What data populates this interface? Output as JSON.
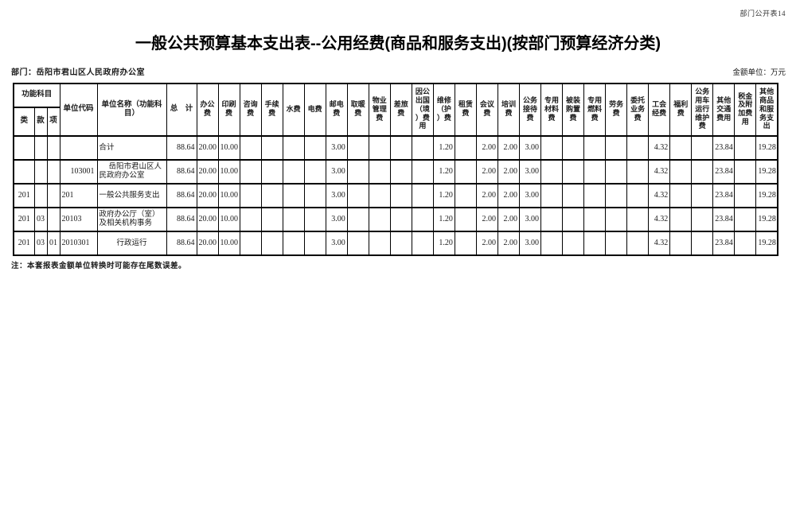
{
  "page": {
    "corner_label": "部门公开表14",
    "title": "一般公共预算基本支出表--公用经费(商品和服务支出)(按部门预算经济分类)",
    "department_label": "部门：岳阳市君山区人民政府办公室",
    "unit_label": "金额单位：万元",
    "footnote": "注：本套报表金额单位转换时可能存在尾数误差。"
  },
  "table": {
    "header": {
      "function_group": "功能科目",
      "function_cols": [
        "类",
        "款",
        "项"
      ],
      "unit_code": "单位代码",
      "unit_name": "单位名称（功能科目）",
      "total": "总　计",
      "fee_columns": [
        "办公费",
        "印刷费",
        "咨询费",
        "手续费",
        "水费",
        "电费",
        "邮电费",
        "取暖费",
        "物业管理费",
        "差旅费",
        "因公出国（境）费用",
        "维修（护）费",
        "租赁费",
        "会议费",
        "培训费",
        "公务接待费",
        "专用材料费",
        "被装购置费",
        "专用燃料费",
        "劳务费",
        "委托业务费",
        "工会经费",
        "福利费",
        "公务用车运行维护费",
        "其他交通费用",
        "税金及附加费用",
        "其他商品和服务支出"
      ]
    },
    "rows": [
      {
        "lei": "",
        "kuan": "",
        "xiang": "",
        "code": "",
        "name": "合计",
        "total": "88.64",
        "fees": [
          "20.00",
          "10.00",
          "",
          "",
          "",
          "",
          "3.00",
          "",
          "",
          "",
          "",
          "1.20",
          "",
          "2.00",
          "2.00",
          "3.00",
          "",
          "",
          "",
          "",
          "",
          "4.32",
          "",
          "",
          "23.84",
          "",
          "19.28"
        ]
      },
      {
        "lei": "",
        "kuan": "",
        "xiang": "",
        "code": "103001",
        "name": "岳阳市君山区人民政府办公室",
        "total": "88.64",
        "fees": [
          "20.00",
          "10.00",
          "",
          "",
          "",
          "",
          "3.00",
          "",
          "",
          "",
          "",
          "1.20",
          "",
          "2.00",
          "2.00",
          "3.00",
          "",
          "",
          "",
          "",
          "",
          "4.32",
          "",
          "",
          "23.84",
          "",
          "19.28"
        ]
      },
      {
        "lei": "201",
        "kuan": "",
        "xiang": "",
        "code": "201",
        "name": "一般公共服务支出",
        "total": "88.64",
        "fees": [
          "20.00",
          "10.00",
          "",
          "",
          "",
          "",
          "3.00",
          "",
          "",
          "",
          "",
          "1.20",
          "",
          "2.00",
          "2.00",
          "3.00",
          "",
          "",
          "",
          "",
          "",
          "4.32",
          "",
          "",
          "23.84",
          "",
          "19.28"
        ]
      },
      {
        "lei": "201",
        "kuan": "03",
        "xiang": "",
        "code": "20103",
        "name": "政府办公厅（室）及相关机构事务",
        "total": "88.64",
        "fees": [
          "20.00",
          "10.00",
          "",
          "",
          "",
          "",
          "3.00",
          "",
          "",
          "",
          "",
          "1.20",
          "",
          "2.00",
          "2.00",
          "3.00",
          "",
          "",
          "",
          "",
          "",
          "4.32",
          "",
          "",
          "23.84",
          "",
          "19.28"
        ]
      },
      {
        "lei": "201",
        "kuan": "03",
        "xiang": "01",
        "code": "2010301",
        "name": "行政运行",
        "total": "88.64",
        "fees": [
          "20.00",
          "10.00",
          "",
          "",
          "",
          "",
          "3.00",
          "",
          "",
          "",
          "",
          "1.20",
          "",
          "2.00",
          "2.00",
          "3.00",
          "",
          "",
          "",
          "",
          "",
          "4.32",
          "",
          "",
          "23.84",
          "",
          "19.28"
        ]
      }
    ]
  }
}
